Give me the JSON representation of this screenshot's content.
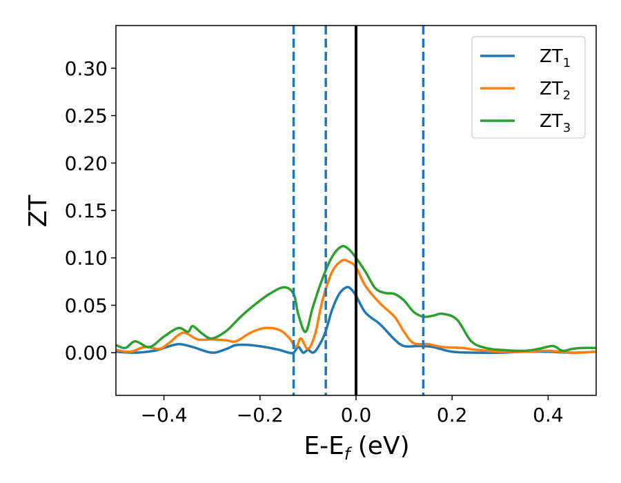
{
  "chart_data": {
    "type": "line",
    "title": "",
    "xlabel_main": "E-E",
    "xlabel_sub": "f",
    "xlabel_tail": " (eV)",
    "ylabel": "ZT",
    "xlim": [
      -0.5,
      0.5
    ],
    "ylim": [
      -0.045,
      0.345
    ],
    "xticks": [
      -0.4,
      -0.2,
      0.0,
      0.2,
      0.4
    ],
    "xtick_labels": [
      "−0.4",
      "−0.2",
      "0.0",
      "0.2",
      "0.4"
    ],
    "yticks": [
      0.0,
      0.05,
      0.1,
      0.15,
      0.2,
      0.25,
      0.3
    ],
    "ytick_labels": [
      "0.00",
      "0.05",
      "0.10",
      "0.15",
      "0.20",
      "0.25",
      "0.30"
    ],
    "grid": false,
    "legend_position": "top-right",
    "vertical_lines": [
      {
        "x": -0.13,
        "style": "dashed",
        "color": "#1f77b4"
      },
      {
        "x": -0.063,
        "style": "dashed",
        "color": "#1f77b4"
      },
      {
        "x": 0.0,
        "style": "solid",
        "color": "#000000"
      },
      {
        "x": 0.14,
        "style": "dashed",
        "color": "#1f77b4"
      }
    ],
    "series": [
      {
        "name": "ZT",
        "subscript": "1",
        "color": "#1f77b4",
        "points": [
          [
            -0.5,
            0.001
          ],
          [
            -0.46,
            0.0
          ],
          [
            -0.42,
            0.002
          ],
          [
            -0.4,
            0.005
          ],
          [
            -0.37,
            0.009
          ],
          [
            -0.34,
            0.006
          ],
          [
            -0.3,
            0.0
          ],
          [
            -0.27,
            0.004
          ],
          [
            -0.25,
            0.008
          ],
          [
            -0.22,
            0.008
          ],
          [
            -0.19,
            0.006
          ],
          [
            -0.16,
            0.003
          ],
          [
            -0.14,
            0.0
          ],
          [
            -0.13,
            0.0
          ],
          [
            -0.12,
            0.006
          ],
          [
            -0.11,
            0.0
          ],
          [
            -0.1,
            0.003
          ],
          [
            -0.09,
            0.0
          ],
          [
            -0.08,
            0.005
          ],
          [
            -0.065,
            0.02
          ],
          [
            -0.05,
            0.045
          ],
          [
            -0.035,
            0.062
          ],
          [
            -0.02,
            0.069
          ],
          [
            -0.01,
            0.067
          ],
          [
            0.0,
            0.06
          ],
          [
            0.02,
            0.042
          ],
          [
            0.05,
            0.03
          ],
          [
            0.08,
            0.014
          ],
          [
            0.1,
            0.007
          ],
          [
            0.13,
            0.007
          ],
          [
            0.16,
            0.006
          ],
          [
            0.2,
            0.001
          ],
          [
            0.25,
            0.0
          ],
          [
            0.3,
            0.0
          ],
          [
            0.35,
            0.001
          ],
          [
            0.4,
            0.001
          ],
          [
            0.45,
            0.0
          ],
          [
            0.5,
            0.001
          ]
        ]
      },
      {
        "name": "ZT",
        "subscript": "2",
        "color": "#ff7f0e",
        "points": [
          [
            -0.5,
            0.003
          ],
          [
            -0.47,
            0.001
          ],
          [
            -0.44,
            0.006
          ],
          [
            -0.41,
            0.004
          ],
          [
            -0.39,
            0.01
          ],
          [
            -0.36,
            0.021
          ],
          [
            -0.33,
            0.014
          ],
          [
            -0.3,
            0.014
          ],
          [
            -0.27,
            0.013
          ],
          [
            -0.25,
            0.012
          ],
          [
            -0.22,
            0.021
          ],
          [
            -0.19,
            0.026
          ],
          [
            -0.16,
            0.024
          ],
          [
            -0.14,
            0.016
          ],
          [
            -0.125,
            0.006
          ],
          [
            -0.115,
            0.015
          ],
          [
            -0.1,
            0.004
          ],
          [
            -0.085,
            0.02
          ],
          [
            -0.07,
            0.055
          ],
          [
            -0.05,
            0.085
          ],
          [
            -0.03,
            0.097
          ],
          [
            -0.015,
            0.096
          ],
          [
            0.0,
            0.09
          ],
          [
            0.02,
            0.07
          ],
          [
            0.05,
            0.052
          ],
          [
            0.08,
            0.038
          ],
          [
            0.1,
            0.022
          ],
          [
            0.12,
            0.01
          ],
          [
            0.15,
            0.009
          ],
          [
            0.18,
            0.006
          ],
          [
            0.22,
            0.005
          ],
          [
            0.25,
            0.003
          ],
          [
            0.3,
            0.001
          ],
          [
            0.35,
            0.001
          ],
          [
            0.4,
            0.002
          ],
          [
            0.45,
            0.0
          ],
          [
            0.5,
            0.001
          ]
        ]
      },
      {
        "name": "ZT",
        "subscript": "3",
        "color": "#2ca02c",
        "points": [
          [
            -0.5,
            0.008
          ],
          [
            -0.48,
            0.005
          ],
          [
            -0.46,
            0.012
          ],
          [
            -0.43,
            0.006
          ],
          [
            -0.4,
            0.017
          ],
          [
            -0.37,
            0.026
          ],
          [
            -0.35,
            0.022
          ],
          [
            -0.34,
            0.028
          ],
          [
            -0.32,
            0.02
          ],
          [
            -0.3,
            0.015
          ],
          [
            -0.27,
            0.023
          ],
          [
            -0.24,
            0.038
          ],
          [
            -0.21,
            0.051
          ],
          [
            -0.18,
            0.062
          ],
          [
            -0.15,
            0.069
          ],
          [
            -0.13,
            0.062
          ],
          [
            -0.12,
            0.04
          ],
          [
            -0.105,
            0.022
          ],
          [
            -0.09,
            0.048
          ],
          [
            -0.07,
            0.078
          ],
          [
            -0.05,
            0.101
          ],
          [
            -0.03,
            0.112
          ],
          [
            -0.015,
            0.109
          ],
          [
            0.0,
            0.1
          ],
          [
            0.02,
            0.085
          ],
          [
            0.04,
            0.068
          ],
          [
            0.06,
            0.063
          ],
          [
            0.08,
            0.062
          ],
          [
            0.1,
            0.055
          ],
          [
            0.12,
            0.043
          ],
          [
            0.14,
            0.038
          ],
          [
            0.16,
            0.039
          ],
          [
            0.18,
            0.041
          ],
          [
            0.21,
            0.035
          ],
          [
            0.24,
            0.012
          ],
          [
            0.27,
            0.005
          ],
          [
            0.3,
            0.003
          ],
          [
            0.35,
            0.002
          ],
          [
            0.38,
            0.004
          ],
          [
            0.41,
            0.007
          ],
          [
            0.43,
            0.002
          ],
          [
            0.45,
            0.004
          ],
          [
            0.47,
            0.005
          ],
          [
            0.5,
            0.005
          ]
        ]
      }
    ]
  }
}
